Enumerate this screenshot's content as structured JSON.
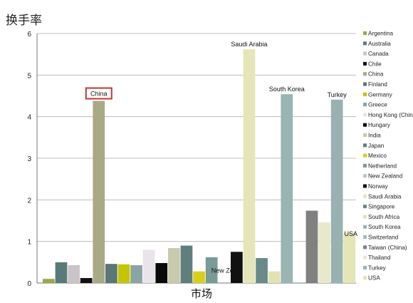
{
  "chart_data": {
    "type": "bar",
    "title": "换手率",
    "xlabel": "市场",
    "ylabel": "",
    "ylim": [
      0,
      6
    ],
    "yticks": [
      "0",
      "1",
      "2",
      "3",
      "4",
      "5",
      "6"
    ],
    "grid": true,
    "legend_position": "right",
    "highlighted_category": "China",
    "categories": [
      "Argentina",
      "Australia",
      "Canada",
      "Chile",
      "China",
      "Finland",
      "Germany",
      "Greece",
      "Hong Kong (China)",
      "Hungary",
      "India",
      "Japan",
      "Mexico",
      "Netherland",
      "New Zealand",
      "Norway",
      "Saudi Arabia",
      "Singapore",
      "South Africa",
      "South Korea",
      "Switzerland",
      "Taiwan (China)",
      "Thailand",
      "Turkey",
      "USA"
    ],
    "values": [
      0.1,
      0.5,
      0.43,
      0.12,
      4.38,
      0.46,
      0.45,
      0.43,
      0.8,
      0.48,
      0.84,
      0.9,
      0.28,
      0.62,
      0.0,
      0.75,
      5.62,
      0.6,
      0.28,
      4.54,
      0.0,
      1.74,
      1.46,
      4.41,
      1.2
    ],
    "colors": [
      "#9aa84a",
      "#5a7a7a",
      "#c8c4c8",
      "#111111",
      "#a9a986",
      "#5a7676",
      "#c4c400",
      "#8aa4a4",
      "#e8e4ea",
      "#0a0a0a",
      "#c9c9ad",
      "#607e7e",
      "#d8d018",
      "#7a9a9a",
      "#bfc5c0",
      "#111111",
      "#e4e6b8",
      "#6a8a8a",
      "#e2e2b2",
      "#9ab3b3",
      "#a7b9b9",
      "#808080",
      "#e8e8cc",
      "#9ab1b1",
      "#e4e6b6"
    ],
    "bar_labels": [
      {
        "category": "China",
        "text": "China"
      },
      {
        "category": "New Zealand",
        "text": "New Zea"
      },
      {
        "category": "Saudi Arabia",
        "text": "Saudi Arabia"
      },
      {
        "category": "South Korea",
        "text": "South Korea"
      },
      {
        "category": "Turkey",
        "text": "Turkey"
      },
      {
        "category": "USA",
        "text": "USA"
      }
    ]
  }
}
